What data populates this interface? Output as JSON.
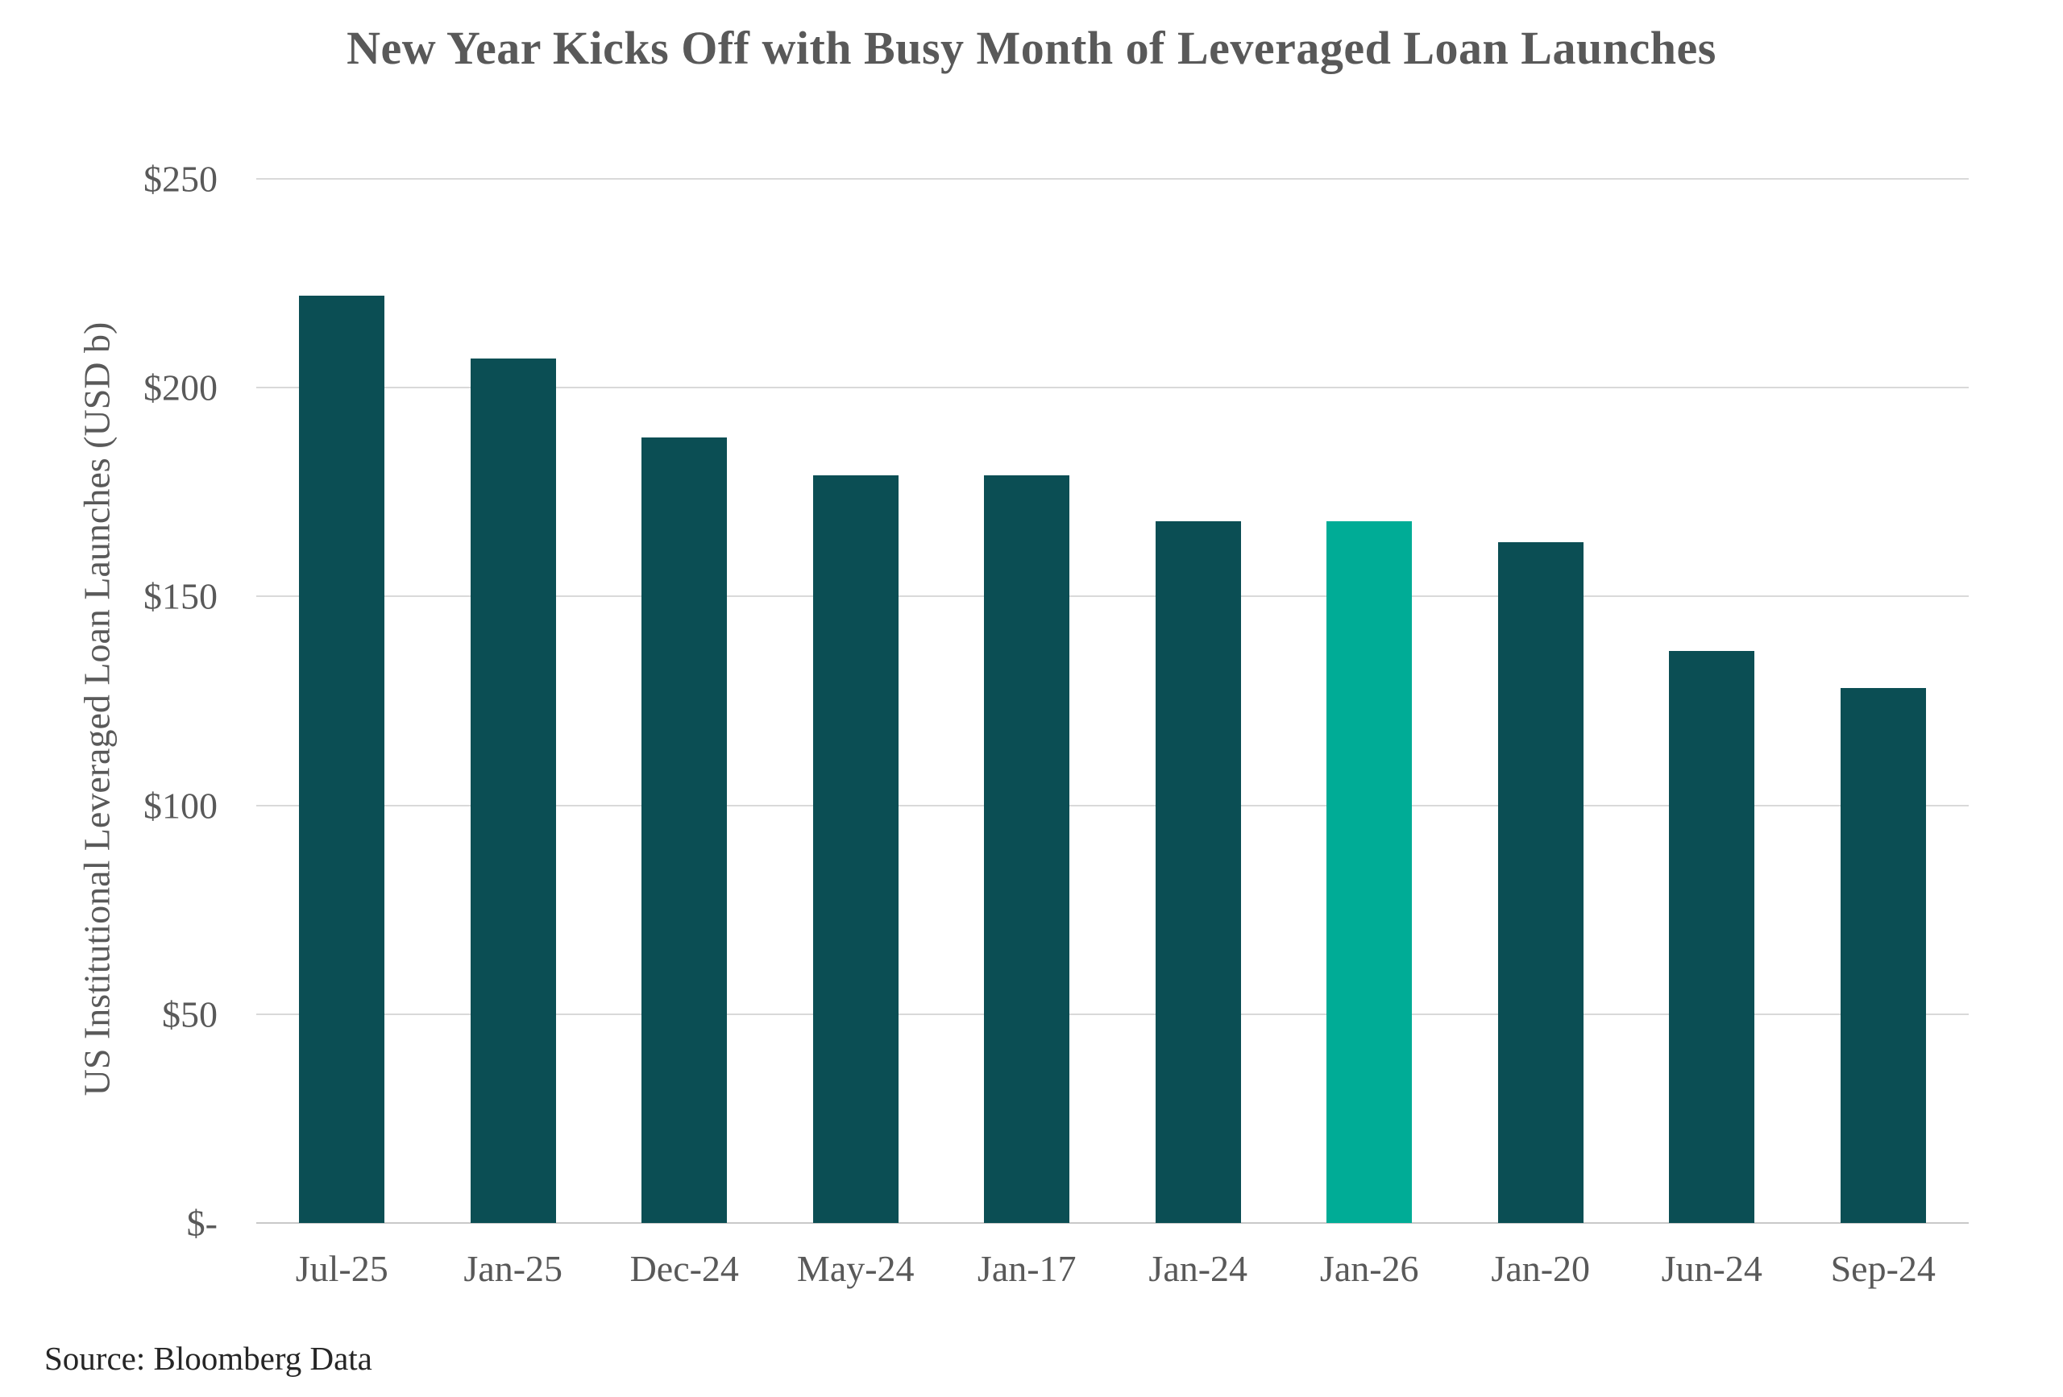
{
  "page": {
    "title": "New Year Kicks Off with Busy Month of Leveraged Loan Launches",
    "source": "Source: Bloomberg Data"
  },
  "colors": {
    "bar": "#0B4E54",
    "bar_highlight": "#00AC96",
    "gridline": "#D9D9D9",
    "axis_line": "#C9C9C9",
    "text": "#595959",
    "source_text": "#262626"
  },
  "chart_data": {
    "type": "bar",
    "title": "New Year Kicks Off with Busy Month of Leveraged Loan Launches",
    "ylabel": "US Institutional Leveraged Loan Launches (USD b)",
    "xlabel": "",
    "categories": [
      "Jul-25",
      "Jan-25",
      "Dec-24",
      "May-24",
      "Jan-17",
      "Jan-24",
      "Jan-26",
      "Jan-20",
      "Jun-24",
      "Sep-24"
    ],
    "values": [
      222,
      207,
      188,
      179,
      179,
      168,
      168,
      163,
      137,
      128
    ],
    "highlight_index": 6,
    "highlight_category": "Jan-26",
    "ylim": [
      0,
      250
    ],
    "yticks": [
      {
        "value": 0,
        "label": "$-"
      },
      {
        "value": 50,
        "label": "$50"
      },
      {
        "value": 100,
        "label": "$100"
      },
      {
        "value": 150,
        "label": "$150"
      },
      {
        "value": 200,
        "label": "$200"
      },
      {
        "value": 250,
        "label": "$250"
      }
    ],
    "grid": "horizontal",
    "legend": "none",
    "source": "Source: Bloomberg Data"
  }
}
